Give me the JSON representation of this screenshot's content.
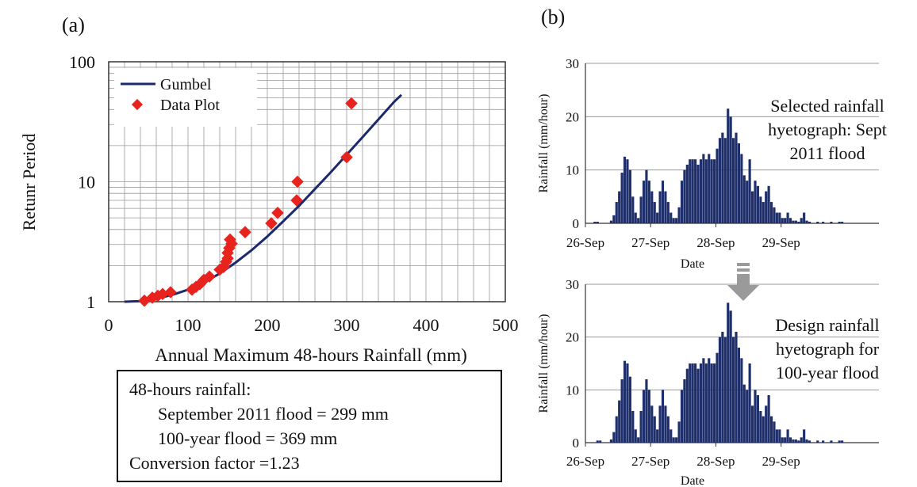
{
  "panel_a": {
    "label": "(a)",
    "ylabel": "Retunr Period",
    "xlabel": "Annual Maximum 48-hours Rainfall (mm)",
    "legend": {
      "line": "Gumbel",
      "points": "Data Plot"
    },
    "info": {
      "line1": "48-hours rainfall:",
      "line2": "September 2011 flood = 299 mm",
      "line3": "100-year flood = 369 mm",
      "line4": "Conversion factor =1.23"
    }
  },
  "panel_b": {
    "label": "(b)",
    "colors": {
      "bars": "#1f2f6b",
      "arrow": "#9a9a9a"
    }
  },
  "chart_data": [
    {
      "id": "return-period",
      "type": "scatter",
      "xlabel": "Annual Maximum 48-hours Rainfall (mm)",
      "ylabel": "Retunr Period",
      "xlim": [
        0,
        500
      ],
      "ylim": [
        1,
        100
      ],
      "yscale": "log",
      "xticks": [
        "0",
        "100",
        "200",
        "300",
        "400",
        "500"
      ],
      "yticks": [
        "1",
        "10",
        "100"
      ],
      "grid": true,
      "legend_position": "top-left",
      "colors": {
        "line": "#1a2a6c",
        "points": "#e8231e"
      },
      "series": [
        {
          "name": "Gumbel",
          "type": "line",
          "x": [
            20,
            40,
            60,
            80,
            100,
            120,
            140,
            160,
            180,
            200,
            220,
            240,
            260,
            280,
            300,
            320,
            340,
            360,
            369
          ],
          "y": [
            1.0,
            1.01,
            1.06,
            1.14,
            1.26,
            1.44,
            1.72,
            2.12,
            2.68,
            3.5,
            4.68,
            6.3,
            8.7,
            12.0,
            16.8,
            23.5,
            33.0,
            46.5,
            53.0
          ]
        },
        {
          "name": "Data Plot",
          "type": "scatter",
          "x": [
            45,
            55,
            62,
            68,
            78,
            105,
            110,
            115,
            120,
            127,
            140,
            145,
            148,
            150,
            150,
            152,
            155,
            153,
            172,
            205,
            213,
            237,
            238,
            300,
            306
          ],
          "y": [
            1.02,
            1.08,
            1.12,
            1.16,
            1.2,
            1.26,
            1.33,
            1.4,
            1.52,
            1.62,
            1.85,
            1.95,
            2.15,
            2.3,
            2.55,
            2.8,
            3.05,
            3.3,
            3.8,
            4.5,
            5.5,
            7.0,
            10.0,
            16.0,
            45.0
          ]
        }
      ]
    },
    {
      "id": "hyetograph-sept-2011",
      "type": "bar",
      "xlabel": "Date",
      "ylabel": "Rainfall (mm/hour)",
      "ylim": [
        0,
        30
      ],
      "yticks": [
        "0",
        "10",
        "20",
        "30"
      ],
      "date_ticks": [
        "26-Sep",
        "27-Sep",
        "28-Sep",
        "29-Sep"
      ],
      "annotation": "Selected rainfall hyetograph: Sept 2011 flood",
      "annotation_lines": [
        "Selected rainfall",
        "hyetograph: Sept",
        "2011 flood"
      ],
      "values": [
        0,
        0,
        0,
        0.3,
        0.3,
        0,
        0,
        0,
        0,
        0.5,
        1.5,
        4,
        6,
        9.5,
        12.5,
        12,
        10,
        5,
        2,
        1,
        5,
        8,
        10,
        8,
        6,
        4,
        2,
        6,
        8,
        6,
        4,
        2,
        1,
        1,
        3,
        8,
        10,
        11,
        12,
        12,
        12,
        11,
        12,
        13,
        12,
        13,
        12,
        12,
        14,
        16,
        17,
        16,
        21.5,
        20,
        16,
        17,
        15,
        13,
        9,
        8,
        12,
        6,
        8,
        7,
        5,
        4,
        6,
        7,
        4,
        3,
        2,
        2,
        1,
        1,
        2,
        1,
        0.5,
        0.5,
        0.3,
        1,
        2,
        0.5,
        0.3,
        0,
        0,
        0.3,
        0,
        0.3,
        0,
        0,
        0.3,
        0,
        0,
        0.3,
        0.3,
        0,
        0,
        0,
        0,
        0,
        0,
        0,
        0,
        0,
        0,
        0,
        0,
        0
      ]
    },
    {
      "id": "hyetograph-100-year",
      "type": "bar",
      "xlabel": "Date",
      "ylabel": "Rainfall (mm/hour)",
      "ylim": [
        0,
        30
      ],
      "yticks": [
        "0",
        "10",
        "20",
        "30"
      ],
      "date_ticks": [
        "26-Sep",
        "27-Sep",
        "28-Sep",
        "29-Sep"
      ],
      "annotation": "Design rainfall hyetograph for 100-year flood",
      "annotation_lines": [
        "Design rainfall",
        "hyetograph for",
        "100-year flood"
      ],
      "values": [
        0,
        0,
        0,
        0,
        0.4,
        0.4,
        0,
        0,
        0,
        0.6,
        2,
        5,
        8,
        12,
        15.5,
        15,
        12.5,
        6,
        2.5,
        1,
        6,
        10,
        12,
        10,
        7,
        5,
        2.5,
        7,
        10,
        7,
        5,
        2.5,
        1,
        1,
        4,
        10,
        12,
        14,
        15,
        15,
        15,
        14,
        15,
        16,
        15,
        16,
        15,
        15,
        17,
        20,
        21,
        20,
        26.5,
        25,
        20,
        21,
        18,
        16,
        11,
        10,
        15,
        7,
        10,
        9,
        6,
        5,
        7,
        9,
        5,
        4,
        2.5,
        2.5,
        1,
        1,
        2.5,
        1,
        0.6,
        0.6,
        0.4,
        1,
        2.5,
        0.6,
        0.4,
        0,
        0,
        0.4,
        0,
        0.4,
        0,
        0,
        0.4,
        0,
        0,
        0.4,
        0.4,
        0,
        0,
        0,
        0,
        0,
        0,
        0,
        0,
        0,
        0,
        0,
        0,
        0
      ]
    }
  ]
}
